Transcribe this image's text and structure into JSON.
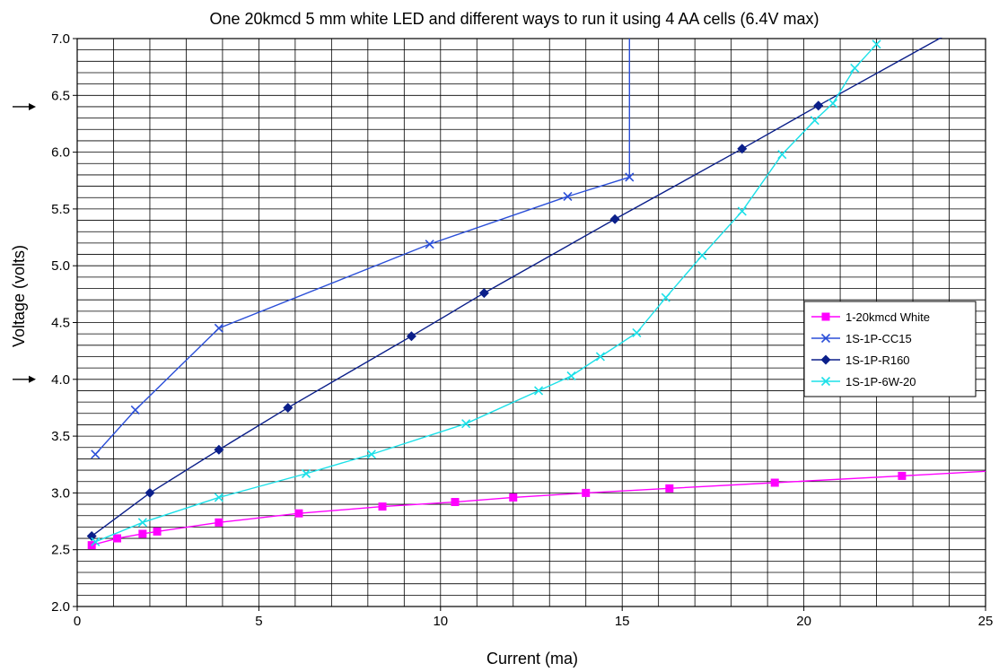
{
  "chart_data": {
    "type": "line",
    "title": "One 20kmcd 5 mm white LED and different ways to run it using 4 AA cells (6.4V max)",
    "xlabel": "Current (ma)",
    "ylabel": "Voltage (volts)",
    "xlim": [
      0,
      25
    ],
    "ylim": [
      2.0,
      7.0
    ],
    "x_major_ticks": [
      0,
      5,
      10,
      15,
      20,
      25
    ],
    "y_major_ticks": [
      2.0,
      2.5,
      3.0,
      3.5,
      4.0,
      4.5,
      5.0,
      5.5,
      6.0,
      6.5,
      7.0
    ],
    "x_minor_step": 1,
    "y_minor_step": 0.1,
    "grid": true,
    "legend_position": "right",
    "axis_markers": [
      6.4,
      4.0
    ],
    "series": [
      {
        "name": "1-20kmcd White",
        "color": "#ff00ff",
        "marker": "square",
        "points": [
          [
            0.4,
            2.54
          ],
          [
            1.1,
            2.6
          ],
          [
            1.8,
            2.64
          ],
          [
            2.2,
            2.66
          ],
          [
            3.9,
            2.74
          ],
          [
            6.1,
            2.82
          ],
          [
            8.4,
            2.88
          ],
          [
            10.4,
            2.92
          ],
          [
            12.0,
            2.96
          ],
          [
            14.0,
            3.0
          ],
          [
            16.3,
            3.04
          ],
          [
            19.2,
            3.09
          ],
          [
            22.7,
            3.15
          ],
          [
            25.0,
            3.19
          ]
        ],
        "marked": [
          true,
          true,
          true,
          true,
          true,
          true,
          true,
          true,
          true,
          true,
          true,
          true,
          true,
          false
        ]
      },
      {
        "name": "1S-1P-CC15",
        "color": "#2b4fd8",
        "marker": "x",
        "points": [
          [
            0.5,
            3.34
          ],
          [
            1.6,
            3.73
          ],
          [
            3.9,
            4.45
          ],
          [
            9.7,
            5.19
          ],
          [
            13.5,
            5.61
          ],
          [
            15.2,
            5.78
          ],
          [
            15.2,
            7.0
          ]
        ],
        "marked": [
          true,
          true,
          true,
          true,
          true,
          true,
          false
        ]
      },
      {
        "name": "1S-1P-R160",
        "color": "#0b1f8a",
        "marker": "diamond",
        "points": [
          [
            0.4,
            2.62
          ],
          [
            2.0,
            3.0
          ],
          [
            3.9,
            3.38
          ],
          [
            5.8,
            3.75
          ],
          [
            9.2,
            4.38
          ],
          [
            11.2,
            4.76
          ],
          [
            14.8,
            5.41
          ],
          [
            18.3,
            6.03
          ],
          [
            20.4,
            6.41
          ],
          [
            23.9,
            7.03
          ]
        ],
        "marked": [
          true,
          true,
          true,
          true,
          true,
          true,
          true,
          true,
          true,
          false
        ]
      },
      {
        "name": "1S-1P-6W-20",
        "color": "#1ce0e8",
        "marker": "x",
        "points": [
          [
            0.5,
            2.57
          ],
          [
            1.8,
            2.74
          ],
          [
            3.9,
            2.96
          ],
          [
            6.3,
            3.17
          ],
          [
            8.1,
            3.34
          ],
          [
            10.7,
            3.61
          ],
          [
            12.7,
            3.9
          ],
          [
            13.6,
            4.03
          ],
          [
            14.4,
            4.2
          ],
          [
            15.4,
            4.41
          ],
          [
            16.2,
            4.72
          ],
          [
            17.2,
            5.09
          ],
          [
            18.3,
            5.48
          ],
          [
            19.4,
            5.98
          ],
          [
            20.3,
            6.28
          ],
          [
            20.8,
            6.43
          ],
          [
            21.4,
            6.74
          ],
          [
            22.0,
            6.95
          ]
        ],
        "marked": [
          true,
          true,
          true,
          true,
          true,
          true,
          true,
          true,
          true,
          true,
          true,
          true,
          true,
          true,
          true,
          true,
          true,
          true
        ]
      }
    ]
  }
}
